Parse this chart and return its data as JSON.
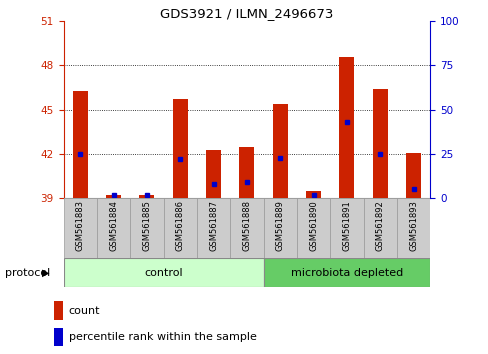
{
  "title": "GDS3921 / ILMN_2496673",
  "samples": [
    "GSM561883",
    "GSM561884",
    "GSM561885",
    "GSM561886",
    "GSM561887",
    "GSM561888",
    "GSM561889",
    "GSM561890",
    "GSM561891",
    "GSM561892",
    "GSM561893"
  ],
  "count_values": [
    46.3,
    39.2,
    39.2,
    45.7,
    42.3,
    42.5,
    45.4,
    39.5,
    48.6,
    46.4,
    42.1
  ],
  "percentile_values": [
    25,
    2,
    2,
    22,
    8,
    9,
    23,
    2,
    43,
    25,
    5
  ],
  "y_min": 39,
  "y_max": 51,
  "y_ticks_left": [
    39,
    42,
    45,
    48,
    51
  ],
  "y_ticks_right": [
    0,
    25,
    50,
    75,
    100
  ],
  "bar_color": "#cc2200",
  "dot_color": "#0000cc",
  "n_control": 6,
  "n_micro": 5,
  "control_color": "#ccffcc",
  "microbiota_color": "#66cc66",
  "protocol_label": "protocol",
  "control_label": "control",
  "microbiota_label": "microbiota depleted",
  "legend_count_label": "count",
  "legend_percentile_label": "percentile rank within the sample",
  "left_axis_color": "#cc2200",
  "right_axis_color": "#0000cc",
  "bg_color": "#ffffff",
  "bar_width": 0.45,
  "label_box_color": "#cccccc",
  "label_box_edge": "#999999"
}
